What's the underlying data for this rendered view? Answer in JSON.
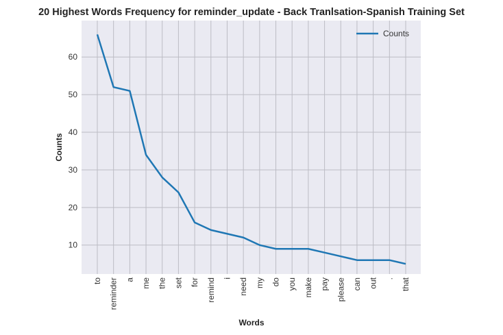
{
  "chart_data": {
    "type": "line",
    "title": "20 Highest Words Frequency for reminder_update - Back Tranlsation-Spanish Training Set",
    "xlabel": "Words",
    "ylabel": "Counts",
    "categories": [
      "to",
      "reminder",
      "a",
      "me",
      "the",
      "set",
      "for",
      "remind",
      "i",
      "need",
      "my",
      "do",
      "you",
      "make",
      "pay",
      "please",
      "can",
      "out",
      ".",
      "that"
    ],
    "series": [
      {
        "name": "Counts",
        "color": "#1f77b4",
        "values": [
          66,
          52,
          51,
          34,
          28,
          24,
          16,
          14,
          13,
          12,
          10,
          9,
          9,
          9,
          8,
          7,
          6,
          6,
          6,
          5
        ]
      }
    ],
    "ylim": [
      2.3,
      69.7
    ],
    "yticks": [
      10,
      20,
      30,
      40,
      50,
      60
    ],
    "grid": true,
    "legend": "top-right"
  }
}
